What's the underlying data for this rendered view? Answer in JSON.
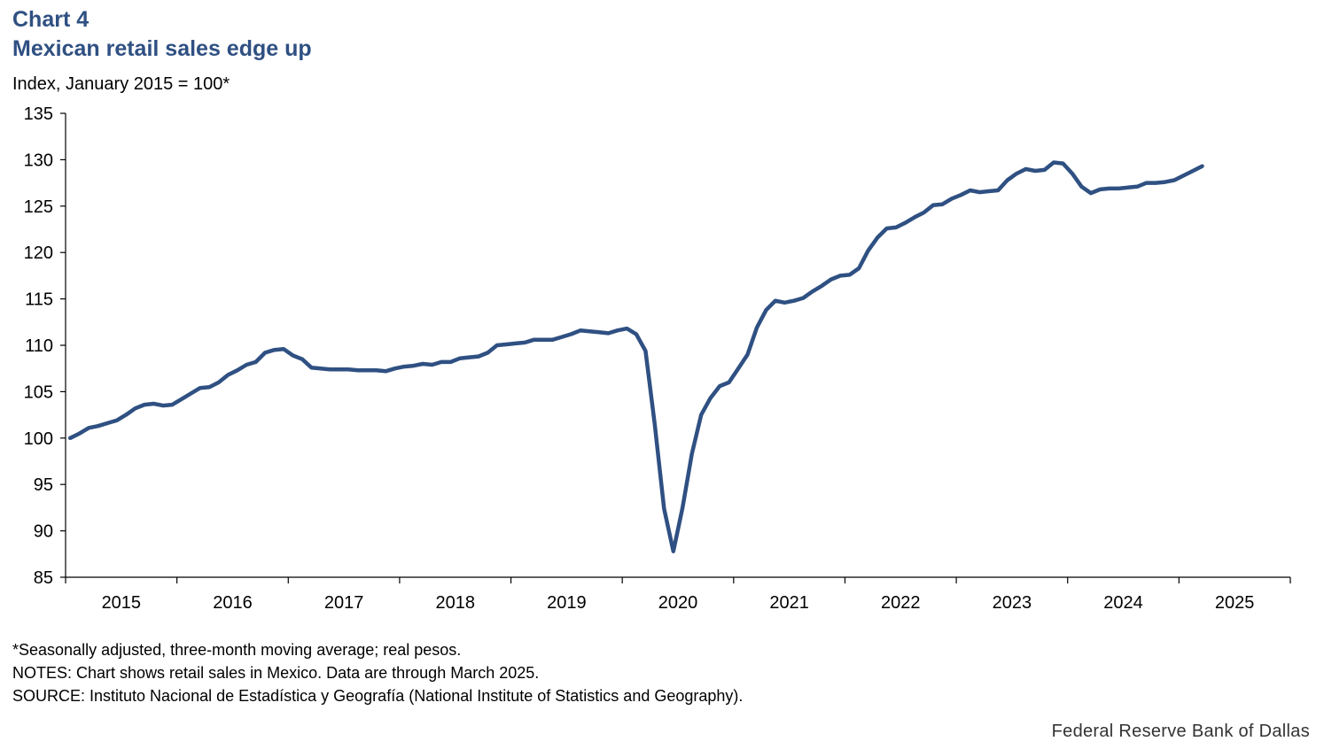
{
  "header": {
    "label": "Chart 4",
    "title": "Mexican retail sales edge up",
    "y_unit": "Index, January 2015 = 100*"
  },
  "colors": {
    "title": "#2f5082",
    "line": "#2f5082",
    "axis": "#000000"
  },
  "chart_data": {
    "type": "line",
    "title": "Mexican retail sales edge up",
    "ylabel": "Index, January 2015 = 100*",
    "ylim": [
      85,
      135
    ],
    "yticks": [
      85,
      90,
      95,
      100,
      105,
      110,
      115,
      120,
      125,
      130,
      135
    ],
    "xlim": [
      "2015-01",
      "2025-12"
    ],
    "x_tick_labels": [
      "2015",
      "2016",
      "2017",
      "2018",
      "2019",
      "2020",
      "2021",
      "2022",
      "2023",
      "2024",
      "2025"
    ],
    "grid": false,
    "series": [
      {
        "start": "2015-01",
        "frequency": "monthly",
        "values": [
          100.0,
          100.5,
          101.1,
          101.3,
          101.6,
          101.9,
          102.5,
          103.2,
          103.6,
          103.7,
          103.5,
          103.6,
          104.2,
          104.8,
          105.4,
          105.5,
          106.0,
          106.8,
          107.3,
          107.9,
          108.2,
          109.2,
          109.5,
          109.6,
          108.9,
          108.5,
          107.6,
          107.5,
          107.4,
          107.4,
          107.4,
          107.3,
          107.3,
          107.3,
          107.2,
          107.5,
          107.7,
          107.8,
          108.0,
          107.9,
          108.2,
          108.2,
          108.6,
          108.7,
          108.8,
          109.2,
          110.0,
          110.1,
          110.2,
          110.3,
          110.6,
          110.6,
          110.6,
          110.9,
          111.2,
          111.6,
          111.5,
          111.4,
          111.3,
          111.6,
          111.8,
          111.2,
          109.4,
          101.5,
          92.4,
          87.8,
          92.5,
          98.3,
          102.5,
          104.3,
          105.6,
          106.0,
          107.5,
          109.0,
          111.9,
          113.8,
          114.8,
          114.6,
          114.8,
          115.1,
          115.8,
          116.4,
          117.1,
          117.5,
          117.6,
          118.3,
          120.2,
          121.6,
          122.6,
          122.7,
          123.2,
          123.8,
          124.3,
          125.1,
          125.2,
          125.8,
          126.2,
          126.7,
          126.5,
          126.6,
          126.7,
          127.8,
          128.5,
          129.0,
          128.8,
          128.9,
          129.7,
          129.6,
          128.5,
          127.1,
          126.4,
          126.8,
          126.9,
          126.9,
          127.0,
          127.1,
          127.5,
          127.5,
          127.6,
          127.8,
          128.3,
          128.8,
          129.3
        ]
      }
    ]
  },
  "footnotes": [
    "*Seasonally adjusted,  three-month  moving average; real pesos.",
    "NOTES: Chart shows retail sales in Mexico. Data are through  March 2025.",
    "SOURCE: Instituto  Nacional de Estadística y Geografía (National Institute  of Statistics and Geography)."
  ],
  "credit": "Federal Reserve Bank of Dallas"
}
